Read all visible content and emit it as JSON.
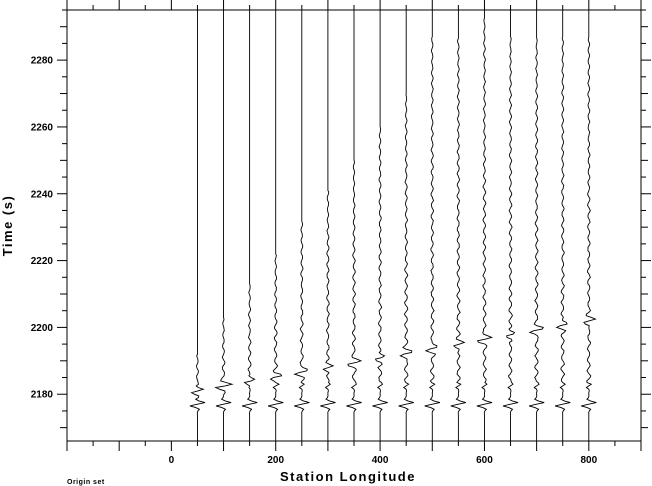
{
  "chart_data": {
    "type": "line",
    "title": "",
    "xlabel": "Station Longitude",
    "ylabel": "Time (s)",
    "xlim": [
      -200,
      900
    ],
    "ylim": [
      2166,
      2295
    ],
    "x_ticks": [
      0,
      200,
      400,
      600,
      800
    ],
    "y_ticks": [
      2180,
      2200,
      2220,
      2240,
      2260,
      2280
    ],
    "x_minor_step": 50,
    "y_minor_step": 5,
    "y_axis_inverted": false,
    "grid": false,
    "trace_top_time": 2295,
    "traces": [
      {
        "station": 50,
        "onset": 2177,
        "end": 2192
      },
      {
        "station": 100,
        "onset": 2177,
        "end": 2203
      },
      {
        "station": 150,
        "onset": 2177,
        "end": 2213
      },
      {
        "station": 200,
        "onset": 2177,
        "end": 2222
      },
      {
        "station": 250,
        "onset": 2177,
        "end": 2232
      },
      {
        "station": 300,
        "onset": 2177,
        "end": 2241
      },
      {
        "station": 350,
        "onset": 2177,
        "end": 2250
      },
      {
        "station": 400,
        "onset": 2177,
        "end": 2260
      },
      {
        "station": 450,
        "onset": 2177,
        "end": 2270
      },
      {
        "station": 500,
        "onset": 2177,
        "end": 2287
      },
      {
        "station": 550,
        "onset": 2177,
        "end": 2287
      },
      {
        "station": 600,
        "onset": 2177,
        "end": 2293
      },
      {
        "station": 650,
        "onset": 2177,
        "end": 2287
      },
      {
        "station": 700,
        "onset": 2177,
        "end": 2287
      },
      {
        "station": 750,
        "onset": 2177,
        "end": 2287
      },
      {
        "station": 800,
        "onset": 2177,
        "end": 2287
      }
    ]
  },
  "footnote": "Origin set"
}
